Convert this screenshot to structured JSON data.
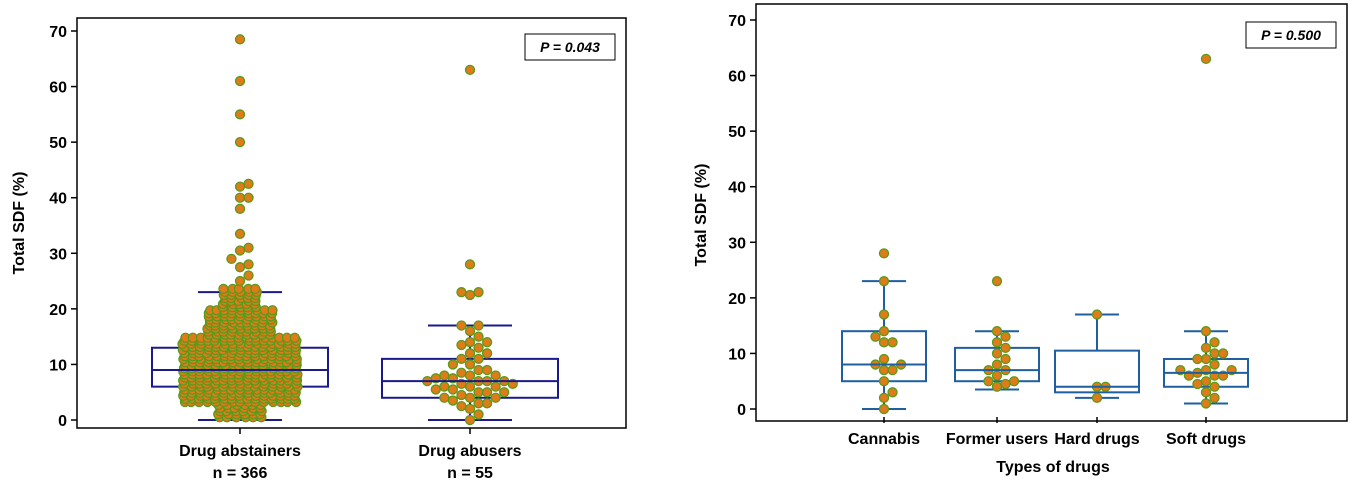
{
  "chart_data": [
    {
      "type": "box",
      "ylabel": "Total SDF (%)",
      "ylim": [
        0,
        70
      ],
      "yticks": [
        0,
        10,
        20,
        30,
        40,
        50,
        60,
        70
      ],
      "p_value_label": "P = 0.043",
      "colors": {
        "box": "#1a1a8c",
        "point_fill": "#e07b1a",
        "point_stroke": "#5a9a1a"
      },
      "groups": [
        {
          "label": "Drug abstainers",
          "n_label": "n = 366",
          "q1": 6,
          "median": 9,
          "q3": 13,
          "whisker_low": 0,
          "whisker_high": 23,
          "outliers": [
            25,
            26,
            27.5,
            28,
            29,
            30.5,
            31,
            33.5,
            38,
            40,
            40,
            42,
            42.5,
            50,
            55,
            61,
            68.5
          ],
          "dense_points_range": [
            0,
            24
          ]
        },
        {
          "label": "Drug abusers",
          "n_label": "n = 55",
          "q1": 4,
          "median": 7,
          "q3": 11,
          "whisker_low": 0,
          "whisker_high": 17,
          "outliers": [
            22.5,
            23,
            23,
            28,
            63
          ],
          "points": [
            0,
            1,
            2,
            2.5,
            3,
            3,
            3.5,
            4,
            4,
            4,
            4.5,
            5,
            5,
            5,
            5.5,
            5.5,
            6,
            6,
            6,
            6.5,
            6.5,
            7,
            7,
            7,
            7,
            7.5,
            7.5,
            8,
            8,
            8,
            8.5,
            9,
            9,
            10,
            10,
            11,
            11,
            12,
            12,
            13,
            13.5,
            14,
            14,
            15,
            16,
            17,
            17
          ]
        }
      ]
    },
    {
      "type": "box",
      "xlabel": "Types of drugs",
      "ylabel": "Total SDF (%)",
      "ylim": [
        0,
        70
      ],
      "yticks": [
        0,
        10,
        20,
        30,
        40,
        50,
        60,
        70
      ],
      "p_value_label": "P = 0.500",
      "colors": {
        "box": "#1f5fa0",
        "point_fill": "#e07b1a",
        "point_stroke": "#5a9a1a"
      },
      "groups": [
        {
          "label": "Cannabis",
          "q1": 5,
          "median": 8,
          "q3": 14,
          "whisker_low": 0,
          "whisker_high": 23,
          "outliers": [
            28
          ],
          "points": [
            0,
            2,
            3,
            5,
            7,
            7,
            8,
            8,
            9,
            12,
            12,
            13,
            14,
            17,
            23
          ]
        },
        {
          "label": "Former users",
          "q1": 5,
          "median": 7,
          "q3": 11,
          "whisker_low": 3.5,
          "whisker_high": 14,
          "outliers": [
            23
          ],
          "points": [
            4,
            4.5,
            5,
            5,
            6,
            7,
            7,
            8,
            9,
            10,
            11,
            12,
            13,
            14
          ]
        },
        {
          "label": "Hard drugs",
          "q1": 3,
          "median": 4,
          "q3": 10.5,
          "whisker_low": 2,
          "whisker_high": 17,
          "outliers": [],
          "points": [
            2,
            4,
            4,
            17
          ]
        },
        {
          "label": "Soft drugs",
          "q1": 4,
          "median": 6.5,
          "q3": 9,
          "whisker_low": 1,
          "whisker_high": 14,
          "outliers": [
            63
          ],
          "points": [
            1,
            2,
            3,
            4,
            4.5,
            5,
            6,
            6,
            6,
            6.5,
            7,
            7,
            7,
            8,
            9,
            9,
            10,
            10,
            11,
            12,
            14
          ]
        }
      ]
    }
  ]
}
